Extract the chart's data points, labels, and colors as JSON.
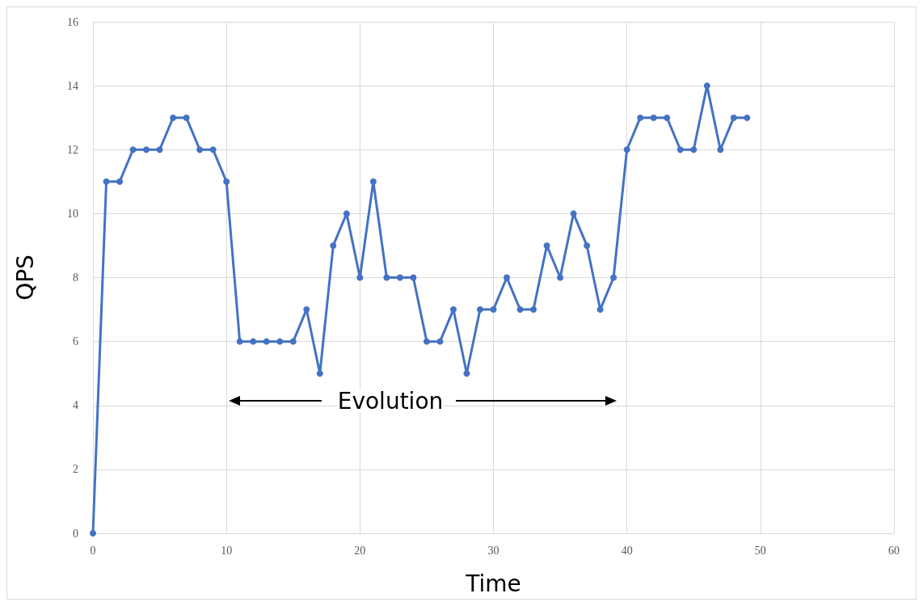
{
  "chart_data": {
    "type": "line",
    "xlabel": "Time",
    "ylabel": "QPS",
    "x": [
      0,
      1,
      2,
      3,
      4,
      5,
      6,
      7,
      8,
      9,
      10,
      11,
      12,
      13,
      14,
      15,
      16,
      17,
      18,
      19,
      20,
      21,
      22,
      23,
      24,
      25,
      26,
      27,
      28,
      29,
      30,
      31,
      32,
      33,
      34,
      35,
      36,
      37,
      38,
      39,
      40,
      41,
      42,
      43,
      44,
      45,
      46,
      47,
      48,
      49
    ],
    "series": [
      {
        "color": "#4472c4",
        "values": [
          0,
          11,
          11,
          12,
          12,
          12,
          13,
          13,
          12,
          12,
          11,
          6,
          6,
          6,
          6,
          6,
          7,
          5,
          9,
          10,
          8,
          11,
          8,
          8,
          8,
          6,
          6,
          7,
          5,
          7,
          7,
          8,
          7,
          7,
          9,
          8,
          10,
          9,
          7,
          8,
          12,
          13,
          13,
          13,
          12,
          12,
          14,
          12,
          13,
          13
        ]
      }
    ],
    "xlim": [
      0,
      60
    ],
    "xticks": [
      0,
      10,
      20,
      30,
      40,
      50,
      60
    ],
    "ylim": [
      0,
      16
    ],
    "yticks": [
      0,
      2,
      4,
      6,
      8,
      10,
      12,
      14,
      16
    ],
    "grid": true,
    "marker": "circle",
    "line_style": "solid",
    "annotations": [
      "Evolution"
    ]
  }
}
